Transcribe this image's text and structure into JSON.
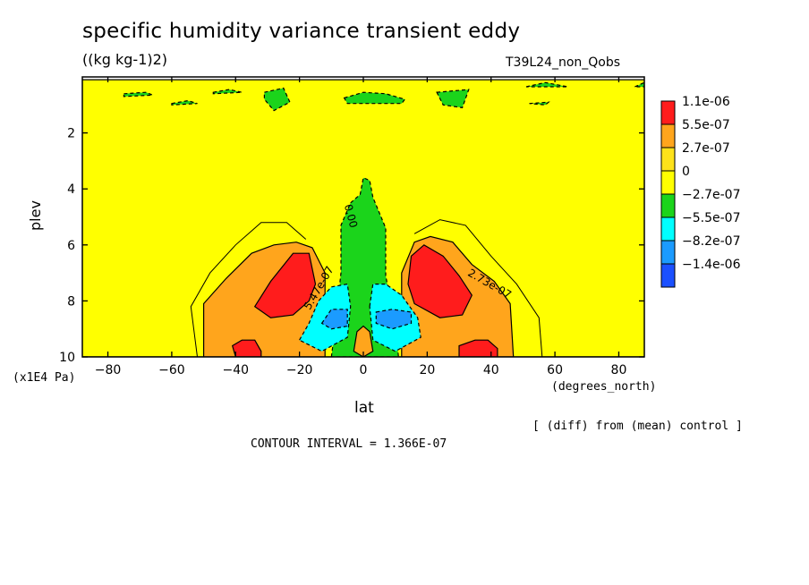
{
  "title": "specific humidity variance transient eddy",
  "units": "((kg kg-1)2)",
  "experiment": "T39L24_non_Qobs",
  "diff_note": "[ (diff) from (mean) control ]",
  "contour_interval": "CONTOUR INTERVAL = 1.366E-07",
  "chart_data": {
    "type": "heatmap",
    "xlabel": "lat",
    "xunits": "(degrees_north)",
    "ylabel": "plev",
    "yunits": "(x1E4 Pa)",
    "xlim": [
      -88,
      88
    ],
    "ylim": [
      10,
      0
    ],
    "x_ticks": [
      -80,
      -60,
      -40,
      -20,
      0,
      20,
      40,
      60,
      80
    ],
    "y_ticks": [
      2,
      4,
      6,
      8,
      10
    ],
    "legend": {
      "placement": "right",
      "entries": [
        {
          "label": "1.1e-06",
          "color": "#ff1c1c"
        },
        {
          "label": "5.5e-07",
          "color": "#ffa51c"
        },
        {
          "label": "2.7e-07",
          "color": "#fde21a"
        },
        {
          "label": "0",
          "color": "#ffff00"
        },
        {
          "label": "−2.7e-07",
          "color": "#1bd41b"
        },
        {
          "label": "−5.5e-07",
          "color": "#00ffff"
        },
        {
          "label": "−8.2e-07",
          "color": "#1b9bff"
        },
        {
          "label": "−1.4e-06",
          "color": "#1b50ff"
        }
      ]
    },
    "contour_labels": [
      {
        "text": "0.00",
        "lat": -5,
        "plev": 5.0
      },
      {
        "text": "2.73e-07",
        "lat": 39,
        "plev": 7.5
      },
      {
        "text": "5.47e-07",
        "lat": -13,
        "plev": 7.6
      }
    ],
    "regions": [
      {
        "level": "0",
        "points": [
          [
            -90,
            0.1
          ],
          [
            90,
            0.1
          ],
          [
            90,
            10
          ],
          [
            -90,
            10
          ]
        ]
      },
      {
        "level": "5.5e-07",
        "points": [
          [
            -50,
            10
          ],
          [
            -50,
            8.1
          ],
          [
            -43,
            7.2
          ],
          [
            -35,
            6.3
          ],
          [
            -28,
            6.0
          ],
          [
            -21,
            5.9
          ],
          [
            -16,
            6.1
          ],
          [
            -12,
            7.0
          ],
          [
            -12,
            10
          ]
        ]
      },
      {
        "level": "5.5e-07",
        "points": [
          [
            12,
            10
          ],
          [
            12,
            7.0
          ],
          [
            16,
            5.9
          ],
          [
            21,
            5.7
          ],
          [
            28,
            5.9
          ],
          [
            34,
            6.7
          ],
          [
            41,
            7.3
          ],
          [
            46,
            8.1
          ],
          [
            47,
            10
          ]
        ]
      },
      {
        "level": "1.1e-06",
        "points": [
          [
            -34,
            8.2
          ],
          [
            -29,
            7.3
          ],
          [
            -22,
            6.3
          ],
          [
            -17,
            6.3
          ],
          [
            -15,
            7.4
          ],
          [
            -17,
            8.0
          ],
          [
            -22,
            8.5
          ],
          [
            -29,
            8.6
          ]
        ]
      },
      {
        "level": "1.1e-06",
        "points": [
          [
            14,
            7.4
          ],
          [
            15,
            6.4
          ],
          [
            19,
            6.0
          ],
          [
            25,
            6.4
          ],
          [
            30,
            7.1
          ],
          [
            34,
            7.8
          ],
          [
            31,
            8.5
          ],
          [
            24,
            8.6
          ],
          [
            16,
            8.1
          ]
        ]
      },
      {
        "level": "1.1e-06",
        "points": [
          [
            -40,
            10
          ],
          [
            -41,
            9.6
          ],
          [
            -38,
            9.4
          ],
          [
            -34,
            9.4
          ],
          [
            -32,
            9.8
          ],
          [
            -32,
            10
          ]
        ]
      },
      {
        "level": "1.1e-06",
        "points": [
          [
            30,
            10
          ],
          [
            30,
            9.6
          ],
          [
            35,
            9.4
          ],
          [
            39,
            9.4
          ],
          [
            42,
            9.7
          ],
          [
            42,
            10
          ]
        ]
      },
      {
        "level": "−2.7e-07",
        "points": [
          [
            -10,
            10
          ],
          [
            -9,
            9.1
          ],
          [
            -7,
            7.0
          ],
          [
            -7,
            5.3
          ],
          [
            -4,
            4.5
          ],
          [
            -1,
            4.2
          ],
          [
            0,
            3.6
          ],
          [
            2,
            3.7
          ],
          [
            3,
            4.3
          ],
          [
            7,
            5.4
          ],
          [
            7,
            7.1
          ],
          [
            10,
            8.9
          ],
          [
            11,
            10
          ]
        ]
      },
      {
        "level": "−5.5e-07",
        "points": [
          [
            -20,
            9.4
          ],
          [
            -17,
            8.8
          ],
          [
            -14,
            8.0
          ],
          [
            -10,
            7.5
          ],
          [
            -5,
            7.4
          ],
          [
            -4,
            8.2
          ],
          [
            -5,
            9.3
          ],
          [
            -13,
            9.8
          ]
        ]
      },
      {
        "level": "−5.5e-07",
        "points": [
          [
            2,
            8.2
          ],
          [
            3,
            7.4
          ],
          [
            7,
            7.4
          ],
          [
            12,
            7.8
          ],
          [
            17,
            8.6
          ],
          [
            18,
            9.3
          ],
          [
            10,
            9.8
          ],
          [
            3,
            9.4
          ]
        ]
      },
      {
        "level": "−8.2e-07",
        "points": [
          [
            -13,
            8.8
          ],
          [
            -10,
            8.3
          ],
          [
            -5,
            8.3
          ],
          [
            -5,
            8.9
          ],
          [
            -10,
            9.0
          ]
        ]
      },
      {
        "level": "−8.2e-07",
        "points": [
          [
            4,
            8.4
          ],
          [
            9,
            8.3
          ],
          [
            15,
            8.4
          ],
          [
            15,
            8.8
          ],
          [
            9,
            9.0
          ],
          [
            4,
            8.8
          ]
        ]
      },
      {
        "level": "5.5e-07",
        "points": [
          [
            -3,
            9.8
          ],
          [
            -2,
            9.1
          ],
          [
            0,
            8.9
          ],
          [
            2,
            9.1
          ],
          [
            3,
            9.8
          ],
          [
            0,
            10
          ]
        ]
      },
      {
        "level": "−2.7e-07",
        "points": [
          [
            -75,
            0.6
          ],
          [
            -68,
            0.55
          ],
          [
            -66,
            0.65
          ],
          [
            -75,
            0.7
          ]
        ]
      },
      {
        "level": "−2.7e-07",
        "points": [
          [
            -60,
            0.95
          ],
          [
            -55,
            0.85
          ],
          [
            -52,
            0.95
          ],
          [
            -60,
            1.0
          ]
        ]
      },
      {
        "level": "−2.7e-07",
        "points": [
          [
            -47,
            0.55
          ],
          [
            -42,
            0.45
          ],
          [
            -38,
            0.55
          ],
          [
            -47,
            0.6
          ]
        ]
      },
      {
        "level": "−2.7e-07",
        "points": [
          [
            -31,
            0.55
          ],
          [
            -25,
            0.4
          ],
          [
            -23,
            0.9
          ],
          [
            -28,
            1.2
          ],
          [
            -31,
            0.8
          ]
        ]
      },
      {
        "level": "−2.7e-07",
        "points": [
          [
            -6,
            0.75
          ],
          [
            0,
            0.55
          ],
          [
            7,
            0.6
          ],
          [
            13,
            0.8
          ],
          [
            12,
            0.95
          ],
          [
            -5,
            0.95
          ]
        ]
      },
      {
        "level": "−2.7e-07",
        "points": [
          [
            23,
            0.55
          ],
          [
            33,
            0.45
          ],
          [
            31,
            1.1
          ],
          [
            25,
            1.0
          ]
        ]
      },
      {
        "level": "−2.7e-07",
        "points": [
          [
            51,
            0.35
          ],
          [
            57,
            0.2
          ],
          [
            64,
            0.35
          ]
        ]
      },
      {
        "level": "−2.7e-07",
        "points": [
          [
            52,
            0.95
          ],
          [
            58,
            0.9
          ],
          [
            57,
            1.0
          ]
        ]
      },
      {
        "level": "−2.7e-07",
        "points": [
          [
            85,
            0.35
          ],
          [
            88,
            0.2
          ],
          [
            88,
            0.35
          ]
        ]
      }
    ]
  }
}
